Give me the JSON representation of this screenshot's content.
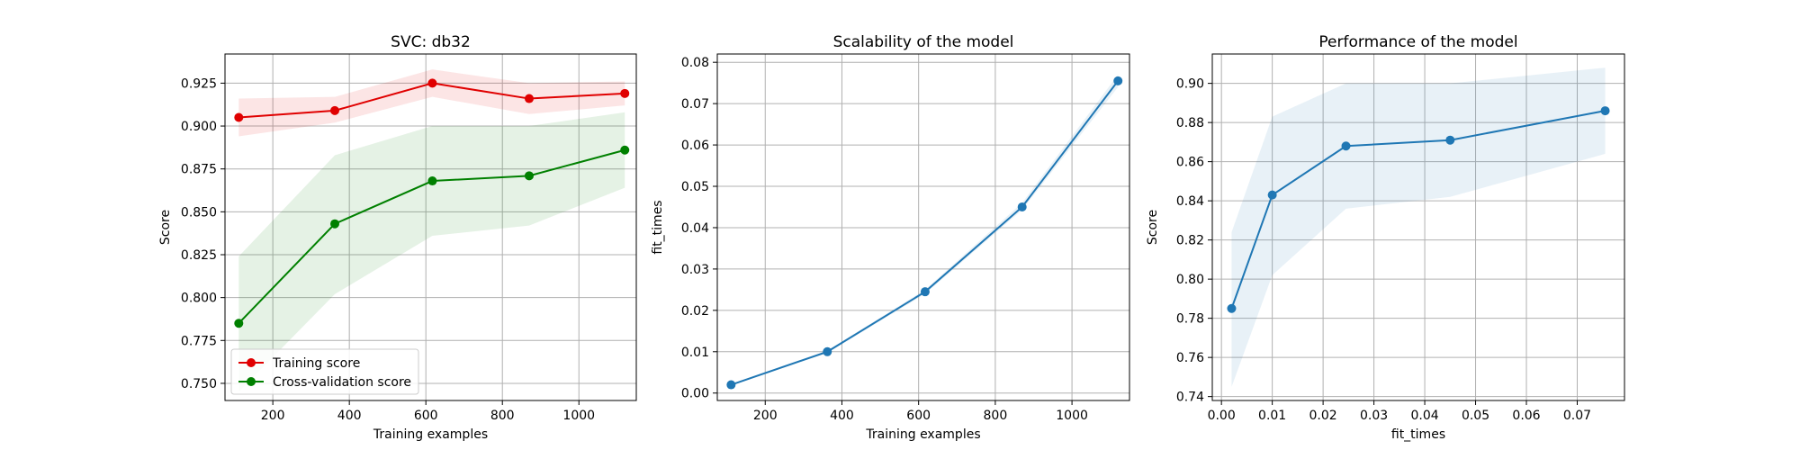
{
  "chart_data": [
    {
      "type": "line",
      "title": "SVC: db32",
      "xlabel": "Training examples",
      "ylabel": "Score",
      "xlim": [
        75,
        1150
      ],
      "ylim": [
        0.74,
        0.942
      ],
      "xticks": [
        200,
        400,
        600,
        800,
        1000
      ],
      "yticks": [
        0.75,
        0.775,
        0.8,
        0.825,
        0.85,
        0.875,
        0.9,
        0.925
      ],
      "ytick_labels": [
        "0.750",
        "0.775",
        "0.800",
        "0.825",
        "0.850",
        "0.875",
        "0.900",
        "0.925"
      ],
      "grid": true,
      "legend": "lower left",
      "x": [
        111,
        362,
        617,
        870,
        1120
      ],
      "series": [
        {
          "name": "Training score",
          "color": "#e00000",
          "values": [
            0.905,
            0.909,
            0.925,
            0.916,
            0.919
          ],
          "band_low": [
            0.894,
            0.902,
            0.917,
            0.907,
            0.912
          ],
          "band_high": [
            0.916,
            0.917,
            0.933,
            0.925,
            0.926
          ]
        },
        {
          "name": "Cross-validation score",
          "color": "#008000",
          "values": [
            0.785,
            0.843,
            0.868,
            0.871,
            0.886
          ],
          "band_low": [
            0.745,
            0.802,
            0.836,
            0.842,
            0.864
          ],
          "band_high": [
            0.824,
            0.883,
            0.9,
            0.9,
            0.908
          ]
        }
      ]
    },
    {
      "type": "line",
      "title": "Scalability of the model",
      "xlabel": "Training examples",
      "ylabel": "fit_times",
      "xlim": [
        75,
        1150
      ],
      "ylim": [
        -0.0018,
        0.082
      ],
      "xticks": [
        200,
        400,
        600,
        800,
        1000
      ],
      "yticks": [
        0.0,
        0.01,
        0.02,
        0.03,
        0.04,
        0.05,
        0.06,
        0.07,
        0.08
      ],
      "ytick_labels": [
        "0.00",
        "0.01",
        "0.02",
        "0.03",
        "0.04",
        "0.05",
        "0.06",
        "0.07",
        "0.08"
      ],
      "grid": true,
      "x": [
        111,
        362,
        617,
        870,
        1120
      ],
      "series": [
        {
          "color": "#1f77b4",
          "values": [
            0.002,
            0.01,
            0.0245,
            0.045,
            0.0755
          ],
          "band_low": [
            0.0018,
            0.0097,
            0.024,
            0.0443,
            0.074
          ],
          "band_high": [
            0.0022,
            0.0103,
            0.025,
            0.046,
            0.077
          ]
        }
      ]
    },
    {
      "type": "line",
      "title": "Performance of the model",
      "xlabel": "fit_times",
      "ylabel": "Score",
      "xlim": [
        -0.0018,
        0.0793
      ],
      "ylim": [
        0.738,
        0.915
      ],
      "xticks": [
        0.0,
        0.01,
        0.02,
        0.03,
        0.04,
        0.05,
        0.06,
        0.07
      ],
      "xtick_labels": [
        "0.00",
        "0.01",
        "0.02",
        "0.03",
        "0.04",
        "0.05",
        "0.06",
        "0.07"
      ],
      "yticks": [
        0.74,
        0.76,
        0.78,
        0.8,
        0.82,
        0.84,
        0.86,
        0.88,
        0.9
      ],
      "ytick_labels": [
        "0.74",
        "0.76",
        "0.78",
        "0.80",
        "0.82",
        "0.84",
        "0.86",
        "0.88",
        "0.90"
      ],
      "grid": true,
      "x": [
        0.002,
        0.01,
        0.0245,
        0.045,
        0.0755
      ],
      "series": [
        {
          "color": "#1f77b4",
          "values": [
            0.785,
            0.843,
            0.868,
            0.871,
            0.886
          ],
          "band_low": [
            0.745,
            0.802,
            0.836,
            0.842,
            0.864
          ],
          "band_high": [
            0.824,
            0.883,
            0.9,
            0.9,
            0.908
          ]
        }
      ]
    }
  ]
}
